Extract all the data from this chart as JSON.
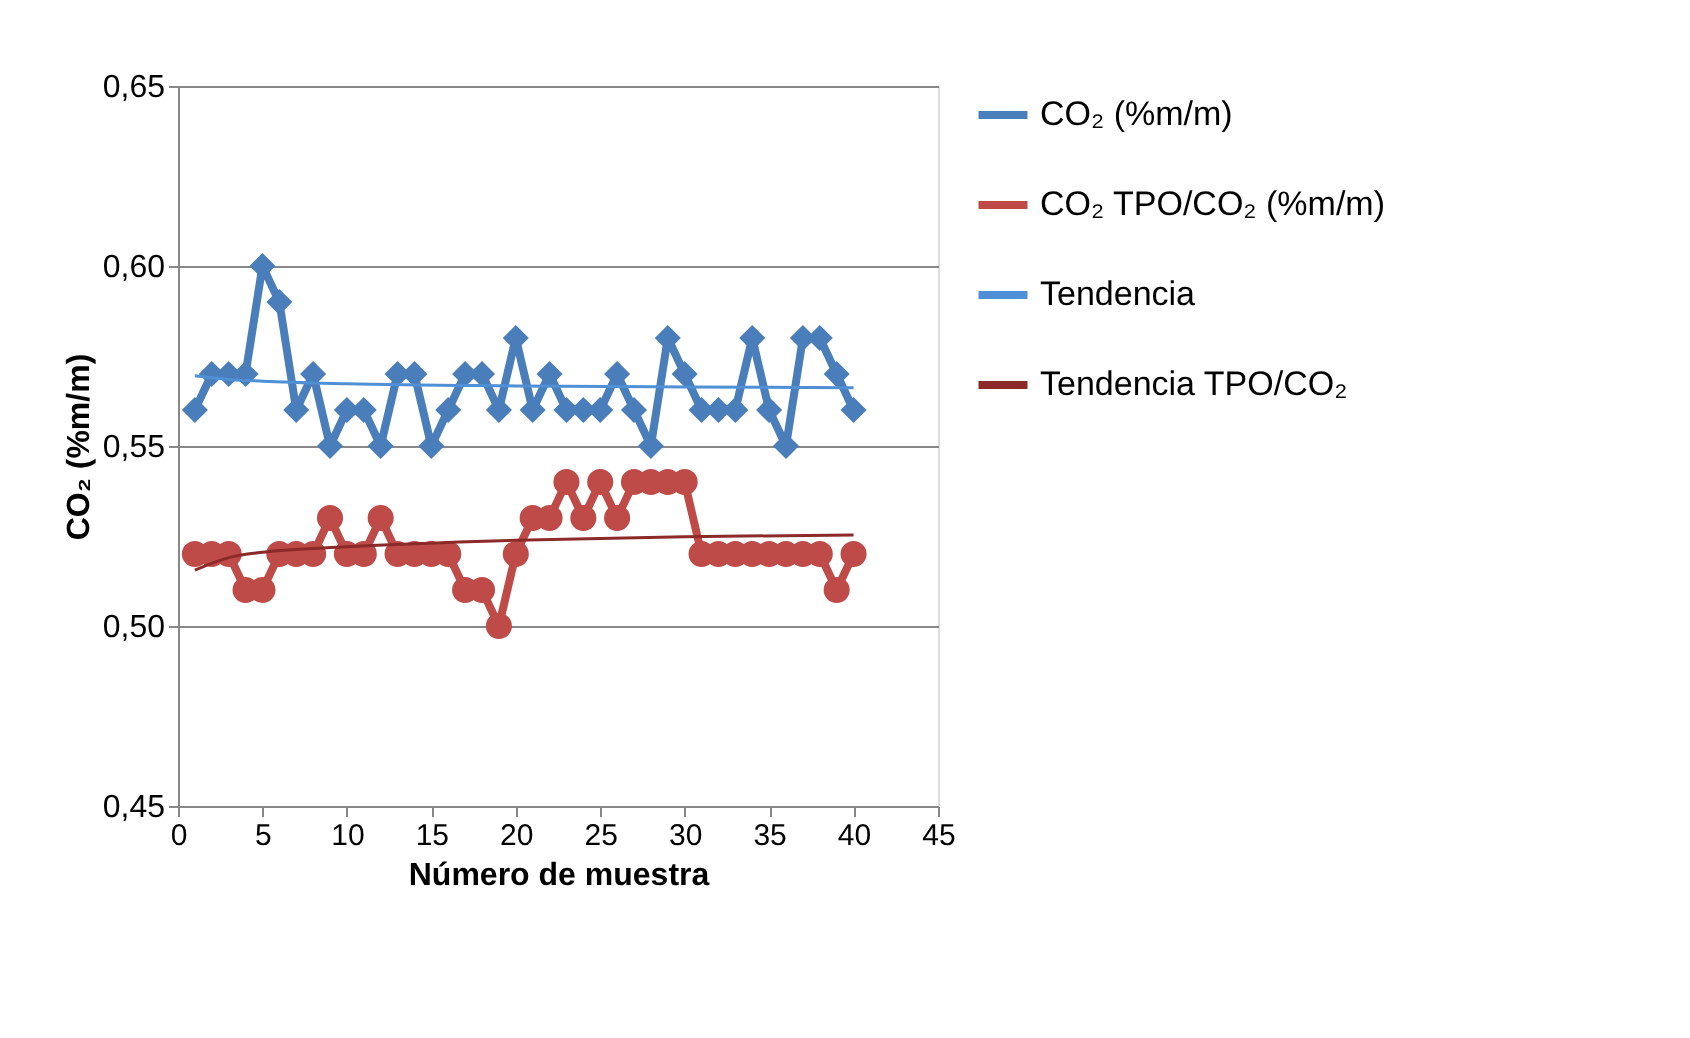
{
  "chart_data": {
    "type": "line",
    "xlabel": "Número de muestra",
    "ylabel": "CO₂ (%m/m)",
    "xlim": [
      0,
      45
    ],
    "xticks": [
      0,
      5,
      10,
      15,
      20,
      25,
      30,
      35,
      40,
      45
    ],
    "ylim": [
      0.45,
      0.65
    ],
    "yticks": [
      {
        "value": 0.45,
        "label": "0,45"
      },
      {
        "value": 0.5,
        "label": "0,50"
      },
      {
        "value": 0.55,
        "label": "0,55"
      },
      {
        "value": 0.6,
        "label": "0,60"
      },
      {
        "value": 0.65,
        "label": "0,65"
      }
    ],
    "grid": "y",
    "legend": "right",
    "line_style": "solid",
    "series": [
      {
        "name": "CO₂ (%m/m)",
        "color": "#4a7ebb",
        "marker": "diamond",
        "x": [
          1,
          2,
          3,
          4,
          5,
          6,
          7,
          8,
          9,
          10,
          11,
          12,
          13,
          14,
          15,
          16,
          17,
          18,
          19,
          20,
          21,
          22,
          23,
          24,
          25,
          26,
          27,
          28,
          29,
          30,
          31,
          32,
          33,
          34,
          35,
          36,
          37,
          38,
          39,
          40
        ],
        "values": [
          0.56,
          0.57,
          0.57,
          0.57,
          0.6,
          0.59,
          0.56,
          0.57,
          0.55,
          0.56,
          0.56,
          0.55,
          0.57,
          0.57,
          0.55,
          0.56,
          0.57,
          0.57,
          0.56,
          0.58,
          0.56,
          0.57,
          0.56,
          0.56,
          0.56,
          0.57,
          0.56,
          0.55,
          0.58,
          0.57,
          0.56,
          0.56,
          0.56,
          0.58,
          0.56,
          0.55,
          0.58,
          0.58,
          0.57,
          0.56
        ]
      },
      {
        "name": "CO₂ TPO/CO₂ (%m/m)",
        "color": "#be4b48",
        "marker": "circle",
        "x": [
          1,
          2,
          3,
          4,
          5,
          6,
          7,
          8,
          9,
          10,
          11,
          12,
          13,
          14,
          15,
          16,
          17,
          18,
          19,
          20,
          21,
          22,
          23,
          24,
          25,
          26,
          27,
          28,
          29,
          30,
          31,
          32,
          33,
          34,
          35,
          36,
          37,
          38,
          39,
          40
        ],
        "values": [
          0.52,
          0.52,
          0.52,
          0.51,
          0.51,
          0.52,
          0.52,
          0.52,
          0.53,
          0.52,
          0.52,
          0.53,
          0.52,
          0.52,
          0.52,
          0.52,
          0.51,
          0.51,
          0.5,
          0.52,
          0.53,
          0.53,
          0.54,
          0.53,
          0.54,
          0.53,
          0.54,
          0.54,
          0.54,
          0.54,
          0.52,
          0.52,
          0.52,
          0.52,
          0.52,
          0.52,
          0.52,
          0.52,
          0.51,
          0.52
        ]
      },
      {
        "name": "Tendencia",
        "color": "#4f8fd6",
        "marker": "none",
        "x": [
          1,
          3,
          5,
          10,
          20,
          30,
          40
        ],
        "values": [
          0.5695,
          0.5685,
          0.568,
          0.5673,
          0.5667,
          0.5664,
          0.5662
        ]
      },
      {
        "name": "Tendencia TPO/CO₂",
        "color": "#8b2a28",
        "marker": "none",
        "x": [
          1,
          3,
          5,
          10,
          20,
          30,
          40
        ],
        "values": [
          0.5155,
          0.519,
          0.5205,
          0.522,
          0.5238,
          0.5248,
          0.5253
        ]
      }
    ]
  }
}
